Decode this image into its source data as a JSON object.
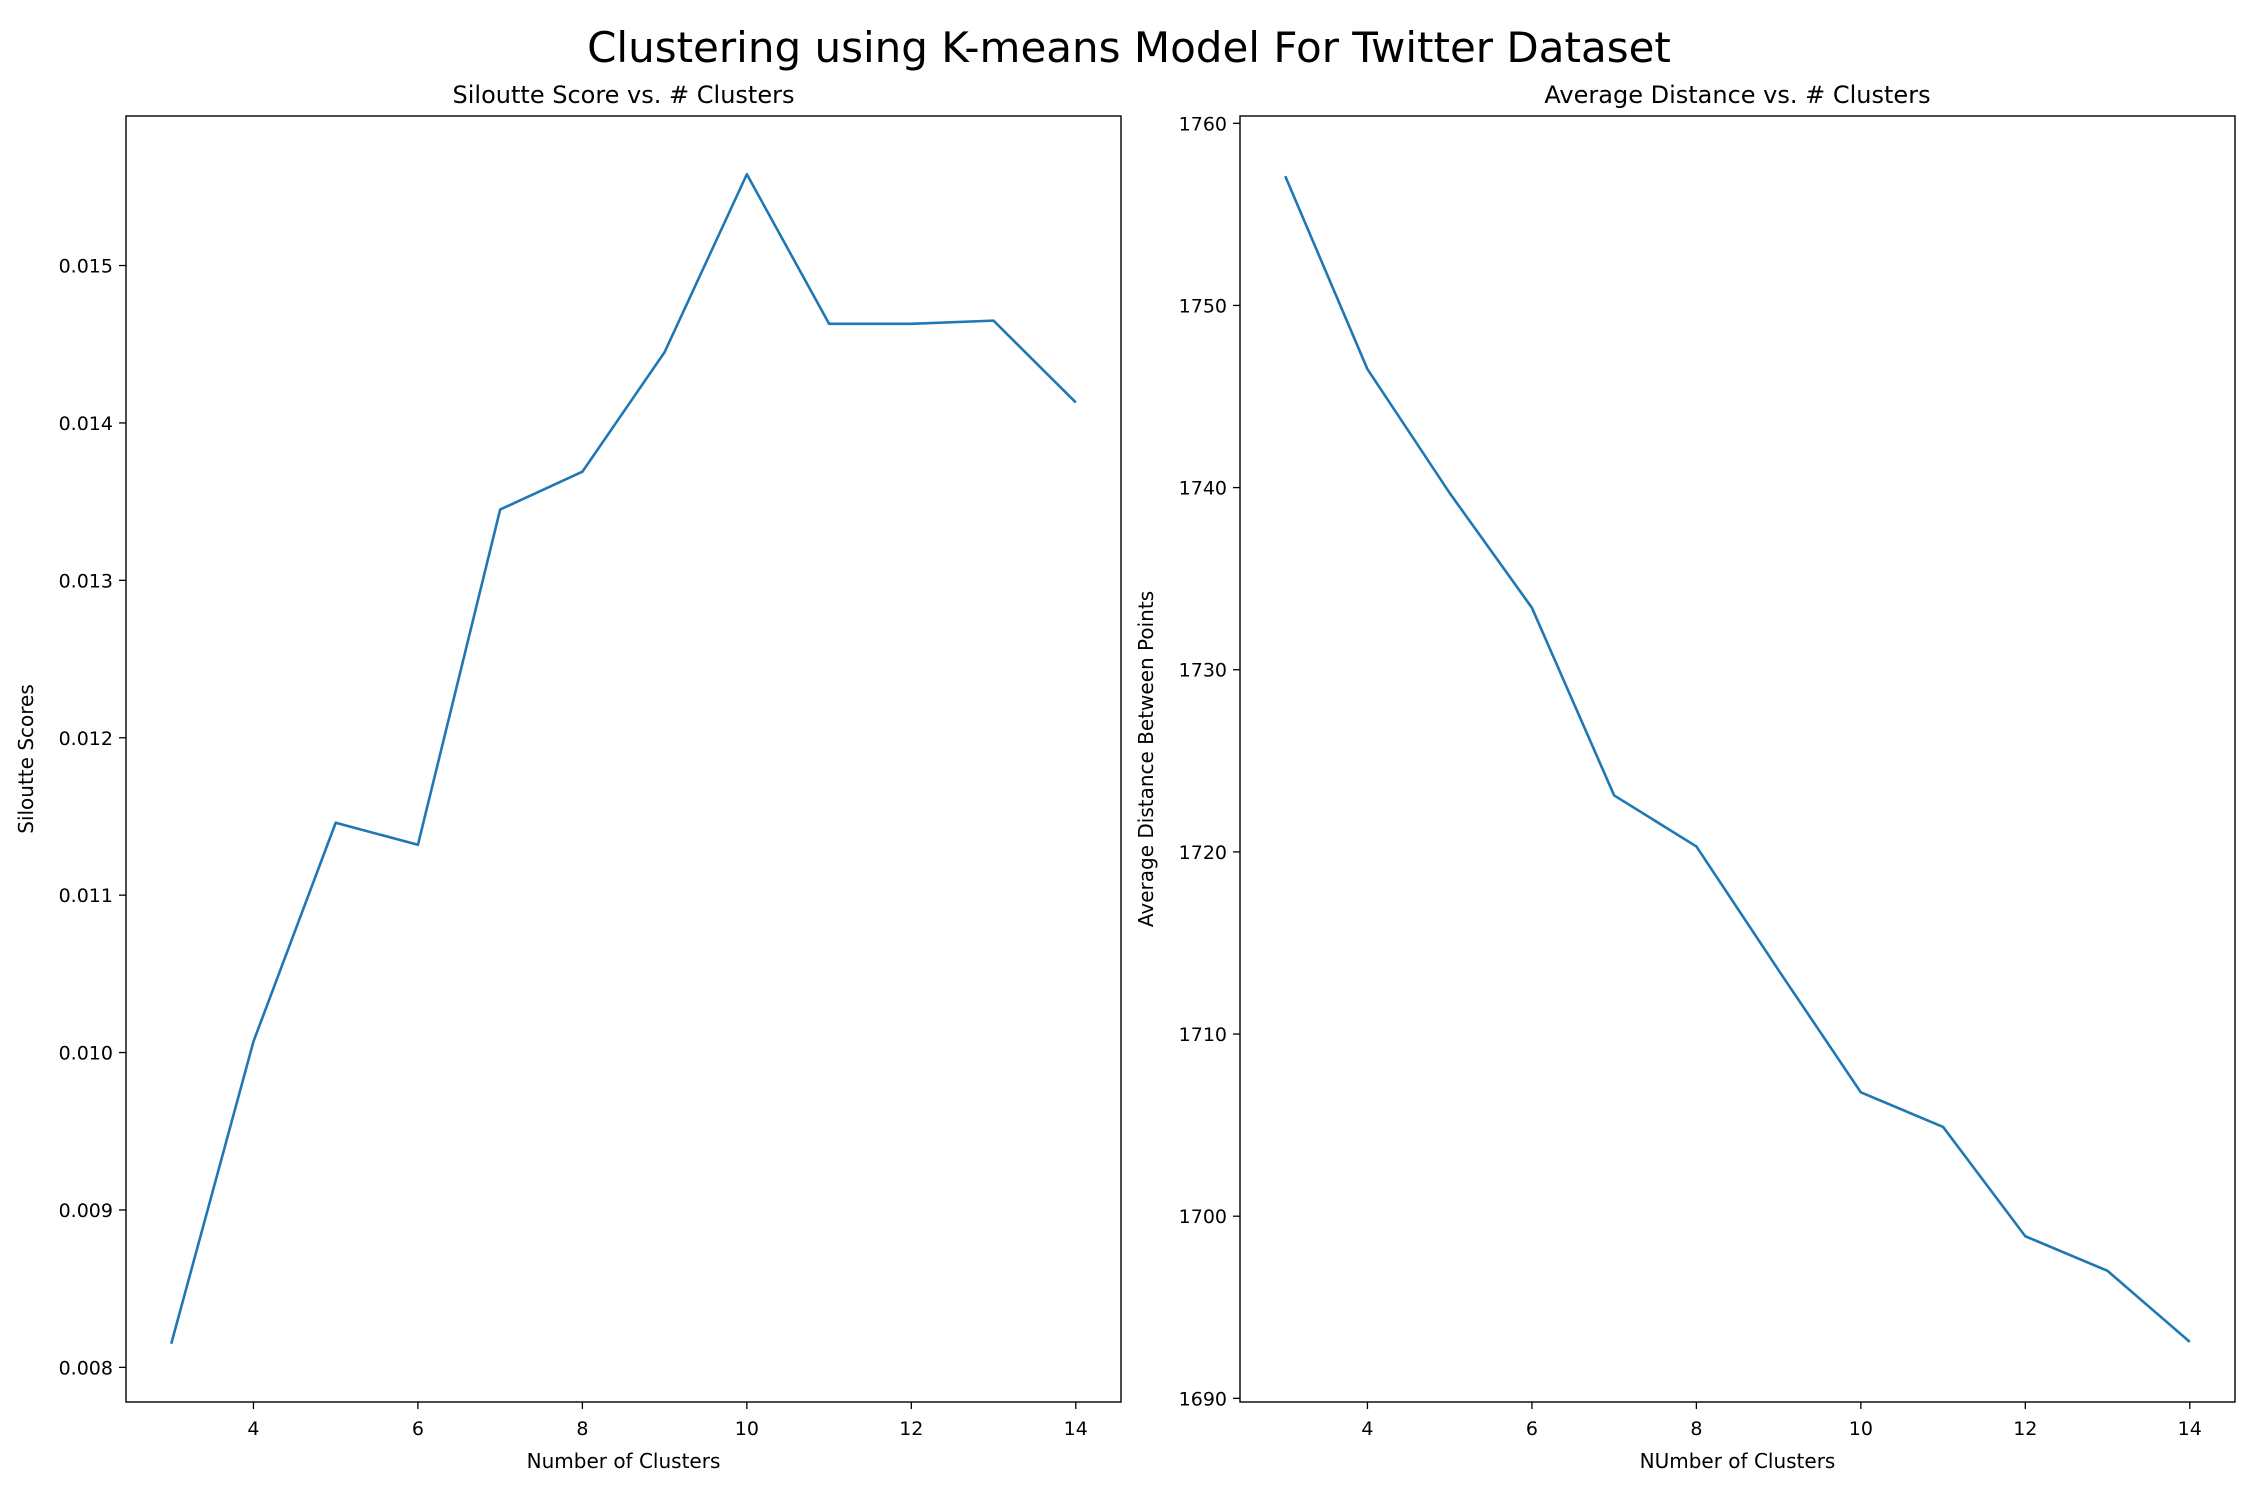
{
  "figure": {
    "suptitle": "Clustering using K-means Model For Twitter Dataset"
  },
  "chart_data": [
    {
      "type": "line",
      "title": "Siloutte Score vs. # Clusters",
      "xlabel": "Number of Clusters",
      "ylabel": "Siloutte Scores",
      "xlim": [
        2.45,
        14.55
      ],
      "ylim": [
        0.00778,
        0.01595
      ],
      "xticks": [
        4,
        6,
        8,
        10,
        12,
        14
      ],
      "xtick_labels": [
        "4",
        "6",
        "8",
        "10",
        "12",
        "14"
      ],
      "yticks": [
        0.008,
        0.009,
        0.01,
        0.011,
        0.012,
        0.013,
        0.014,
        0.015
      ],
      "ytick_labels": [
        "0.008",
        "0.009",
        "0.010",
        "0.011",
        "0.012",
        "0.013",
        "0.014",
        "0.015"
      ],
      "grid": false,
      "series": [
        {
          "color": "#1f77b4",
          "x": [
            3,
            4,
            5,
            6,
            7,
            8,
            9,
            10,
            11,
            12,
            13,
            14
          ],
          "y": [
            0.00815,
            0.01007,
            0.01146,
            0.01132,
            0.01345,
            0.01369,
            0.01445,
            0.01558,
            0.01463,
            0.01463,
            0.01465,
            0.01413
          ]
        }
      ]
    },
    {
      "type": "line",
      "title": "Average Distance vs. # Clusters",
      "xlabel": "NUmber of Clusters",
      "ylabel": "Average Distance Between Points",
      "xlim": [
        2.45,
        14.55
      ],
      "ylim": [
        1689.8,
        1760.4
      ],
      "xticks": [
        4,
        6,
        8,
        10,
        12,
        14
      ],
      "xtick_labels": [
        "4",
        "6",
        "8",
        "10",
        "12",
        "14"
      ],
      "yticks": [
        1690,
        1700,
        1710,
        1720,
        1730,
        1740,
        1750,
        1760
      ],
      "ytick_labels": [
        "1690",
        "1700",
        "1710",
        "1720",
        "1730",
        "1740",
        "1750",
        "1760"
      ],
      "grid": false,
      "series": [
        {
          "color": "#1f77b4",
          "x": [
            3,
            4,
            5,
            6,
            7,
            8,
            9,
            10,
            11,
            12,
            13,
            14
          ],
          "y": [
            1757.1,
            1746.5,
            1739.7,
            1733.4,
            1723.1,
            1720.3,
            1713.5,
            1706.8,
            1704.9,
            1698.9,
            1697.0,
            1693.1
          ]
        }
      ]
    }
  ]
}
